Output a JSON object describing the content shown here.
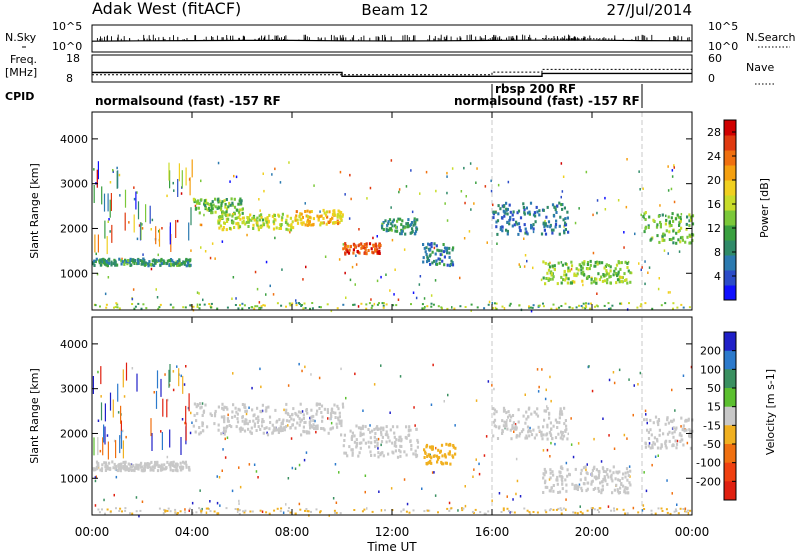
{
  "header": {
    "station": "Adak West (fitACF)",
    "beam": "Beam 12",
    "date": "27/Jul/2014"
  },
  "labels": {
    "nsky": "N.Sky",
    "nsearch": "N.Search",
    "freq_line1": "Freq.",
    "freq_line2": "[MHz]",
    "nave": "Nave",
    "cpid": "CPID",
    "time_axis": "Time UT"
  },
  "ticks": {
    "noise_left_top": "10^5",
    "noise_left_bottom": "10^0",
    "noise_right_top": "10^5",
    "noise_right_bottom": "10^0",
    "freq_left_top": "18",
    "freq_left_bottom": "8",
    "freq_right_top": "60",
    "freq_right_bottom": "0"
  },
  "cpid_segments": [
    {
      "label": "normalsound (fast) -157 RF",
      "start_h": 0,
      "end_h": 16
    },
    {
      "label": "rbsp 200 RF",
      "start_h": 16,
      "end_h": 22
    },
    {
      "label": "normalsound (fast) -157 RF",
      "start_h": 22,
      "end_h": 24
    }
  ],
  "chart_data": [
    {
      "type": "line",
      "panel": "noise",
      "series": [
        {
          "name": "N.Sky",
          "x": [
            0,
            2,
            4,
            6,
            8,
            10,
            12,
            14,
            16,
            18,
            20,
            22,
            24
          ],
          "y": [
            100,
            120,
            130,
            140,
            140,
            120,
            110,
            120,
            140,
            150,
            150,
            130,
            120
          ]
        },
        {
          "name": "N.Search",
          "x": [
            18,
            19,
            20,
            21
          ],
          "y": [
            300,
            250,
            280,
            250
          ]
        }
      ],
      "ylim": [
        1,
        100000
      ],
      "yscale": "log"
    },
    {
      "type": "line",
      "panel": "frequency",
      "series": [
        {
          "name": "Freq.",
          "x": [
            0,
            10,
            10,
            18,
            18,
            24
          ],
          "y": [
            11.5,
            11.5,
            10.1,
            10.1,
            11.2,
            11.2
          ]
        },
        {
          "name": "Nave",
          "x": [
            0,
            16,
            16,
            18,
            18,
            24
          ],
          "y": [
            16,
            16,
            22,
            22,
            28,
            28
          ]
        }
      ],
      "ylim": [
        8,
        18
      ],
      "ylim_right": [
        0,
        60
      ]
    },
    {
      "type": "heatmap",
      "panel": "power",
      "ylabel": "Slant Range [km]",
      "xlabel": "Time UT",
      "x_ticks": [
        "00:00",
        "04:00",
        "08:00",
        "12:00",
        "16:00",
        "20:00",
        "00:00"
      ],
      "xlim": [
        0,
        24
      ],
      "y_ticks": [
        "1000",
        "2000",
        "3000",
        "4000"
      ],
      "ylim": [
        180,
        4600
      ],
      "colorbar": {
        "label": "Power [dB]",
        "ticks": [
          "4",
          "8",
          "12",
          "16",
          "20",
          "24",
          "28"
        ],
        "range": [
          0,
          30
        ]
      },
      "features": [
        {
          "t0": 0.0,
          "t1": 3.9,
          "r0": 1200,
          "r1": 1350,
          "level": 9
        },
        {
          "t0": 4.0,
          "t1": 6.0,
          "r0": 2350,
          "r1": 2700,
          "level": 12
        },
        {
          "t0": 5.0,
          "t1": 8.0,
          "r0": 2000,
          "r1": 2350,
          "level": 16
        },
        {
          "t0": 8.0,
          "t1": 10.0,
          "r0": 2100,
          "r1": 2450,
          "level": 20
        },
        {
          "t0": 10.0,
          "t1": 11.5,
          "r0": 1450,
          "r1": 1700,
          "level": 27
        },
        {
          "t0": 11.5,
          "t1": 13.0,
          "r0": 1900,
          "r1": 2250,
          "level": 9
        },
        {
          "t0": 13.2,
          "t1": 14.5,
          "r0": 1200,
          "r1": 1700,
          "level": 7
        },
        {
          "t0": 16.0,
          "t1": 19.0,
          "r0": 1900,
          "r1": 2600,
          "level": 6
        },
        {
          "t0": 18.0,
          "t1": 21.5,
          "r0": 800,
          "r1": 1300,
          "level": 14
        },
        {
          "t0": 22.0,
          "t1": 24.0,
          "r0": 1700,
          "r1": 2400,
          "level": 13
        }
      ]
    },
    {
      "type": "heatmap",
      "panel": "velocity",
      "ylabel": "Slant Range [km]",
      "xlabel": "Time UT",
      "x_ticks": [
        "00:00",
        "04:00",
        "08:00",
        "12:00",
        "16:00",
        "20:00",
        "00:00"
      ],
      "xlim": [
        0,
        24
      ],
      "y_ticks": [
        "1000",
        "2000",
        "3000",
        "4000"
      ],
      "ylim": [
        180,
        4600
      ],
      "colorbar": {
        "label": "Velocity [m s-1]",
        "ticks": [
          "200",
          "100",
          "50",
          "15",
          "-15",
          "-50",
          "-100",
          "-200"
        ],
        "range": [
          -250,
          250
        ]
      },
      "features": [
        {
          "t0": 0.0,
          "t1": 3.9,
          "r0": 1200,
          "r1": 1400,
          "level": 0
        },
        {
          "t0": 4.0,
          "t1": 10.0,
          "r0": 2000,
          "r1": 2700,
          "level": 0
        },
        {
          "t0": 10.0,
          "t1": 13.0,
          "r0": 1500,
          "r1": 2200,
          "level": 0
        },
        {
          "t0": 13.2,
          "t1": 14.5,
          "r0": 1350,
          "r1": 1800,
          "level": -60
        },
        {
          "t0": 16.0,
          "t1": 19.0,
          "r0": 1900,
          "r1": 2600,
          "level": 0
        },
        {
          "t0": 18.0,
          "t1": 21.5,
          "r0": 700,
          "r1": 1300,
          "level": 0
        },
        {
          "t0": 22.0,
          "t1": 24.0,
          "r0": 1700,
          "r1": 2400,
          "level": 0
        }
      ]
    }
  ]
}
